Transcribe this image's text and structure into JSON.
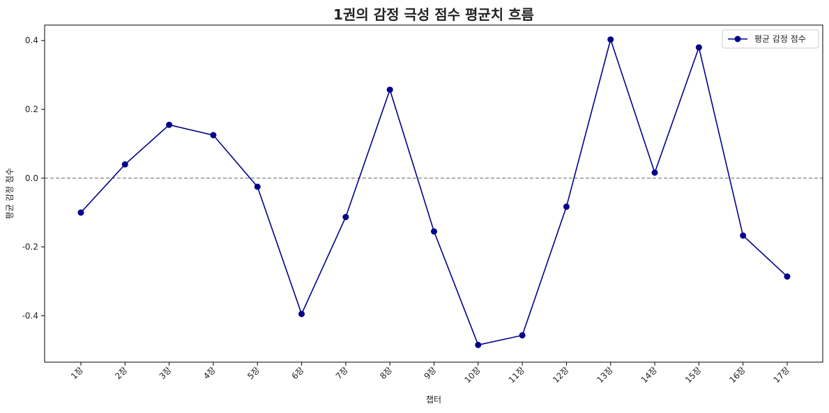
{
  "chart_data": {
    "type": "line",
    "title": "1권의 감정 극성 점수 평균치 흐름",
    "xlabel": "챕터",
    "ylabel": "평균 감정 점수",
    "categories": [
      "1장",
      "2장",
      "3장",
      "4장",
      "5장",
      "6장",
      "7장",
      "8장",
      "9장",
      "10장",
      "11장",
      "12장",
      "13장",
      "14장",
      "15장",
      "16장",
      "17장"
    ],
    "series": [
      {
        "name": "평균 감정 점수",
        "values": [
          -0.1,
          0.04,
          0.155,
          0.125,
          -0.025,
          -0.395,
          -0.113,
          0.257,
          -0.155,
          -0.485,
          -0.457,
          -0.083,
          0.403,
          0.016,
          0.38,
          -0.167,
          -0.286
        ],
        "color": "#00008b",
        "marker": "circle"
      }
    ],
    "ylim": [
      -0.535,
      0.445
    ],
    "yticks": [
      -0.4,
      -0.2,
      0.0,
      0.2,
      0.4
    ],
    "ytick_labels": [
      "-0.4",
      "-0.2",
      "0.0",
      "0.2",
      "0.4"
    ],
    "reference_line": {
      "y": 0.0,
      "style": "dashed",
      "color": "#808080"
    },
    "grid": false,
    "legend_position": "top-right",
    "xtick_rotation": 45
  }
}
